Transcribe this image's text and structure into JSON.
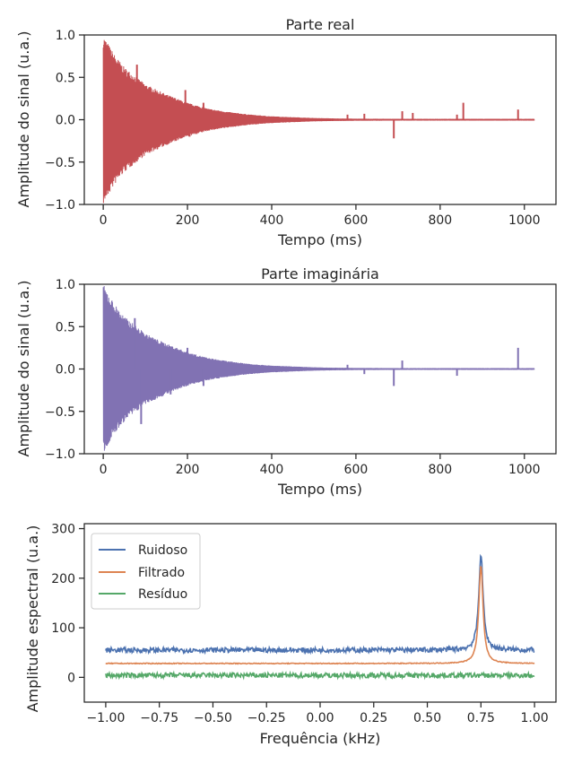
{
  "chart_data": [
    {
      "type": "line",
      "title": "Parte real",
      "xlabel": "Tempo (ms)",
      "ylabel": "Amplitude do sinal (u.a.)",
      "xlim": [
        -45,
        1075
      ],
      "ylim": [
        -1.0,
        1.0
      ],
      "xticks": [
        0,
        200,
        400,
        600,
        800,
        1000
      ],
      "yticks": [
        -1.0,
        -0.5,
        0.0,
        0.5,
        1.0
      ],
      "xtick_labels": [
        "0",
        "200",
        "400",
        "600",
        "800",
        "1000"
      ],
      "ytick_labels": [
        "−1.0",
        "−0.5",
        "0.0",
        "0.5",
        "1.0"
      ],
      "color": "#c44e52",
      "series": [
        {
          "envelope": {
            "x": [
              0,
              25,
              50,
              100,
              150,
              200,
              250,
              300,
              350,
              400,
              450,
              500,
              550,
              600,
              700,
              800,
              900,
              1000,
              1024
            ],
            "amp": [
              1.0,
              0.78,
              0.62,
              0.42,
              0.3,
              0.2,
              0.13,
              0.09,
              0.06,
              0.04,
              0.03,
              0.02,
              0.015,
              0.012,
              0.01,
              0.01,
              0.01,
              0.01,
              0.01
            ]
          },
          "spikes": [
            {
              "x": 80,
              "y": 0.65
            },
            {
              "x": 90,
              "y": -0.35
            },
            {
              "x": 165,
              "y": -0.2
            },
            {
              "x": 195,
              "y": 0.35
            },
            {
              "x": 205,
              "y": -0.2
            },
            {
              "x": 238,
              "y": 0.2
            },
            {
              "x": 242,
              "y": -0.12
            },
            {
              "x": 580,
              "y": 0.06
            },
            {
              "x": 620,
              "y": 0.07
            },
            {
              "x": 690,
              "y": -0.22
            },
            {
              "x": 710,
              "y": 0.1
            },
            {
              "x": 735,
              "y": 0.08
            },
            {
              "x": 840,
              "y": 0.06
            },
            {
              "x": 855,
              "y": 0.2
            },
            {
              "x": 985,
              "y": 0.12
            }
          ]
        }
      ]
    },
    {
      "type": "line",
      "title": "Parte imaginária",
      "xlabel": "Tempo (ms)",
      "ylabel": "Amplitude do sinal (u.a.)",
      "xlim": [
        -45,
        1075
      ],
      "ylim": [
        -1.0,
        1.0
      ],
      "xticks": [
        0,
        200,
        400,
        600,
        800,
        1000
      ],
      "yticks": [
        -1.0,
        -0.5,
        0.0,
        0.5,
        1.0
      ],
      "xtick_labels": [
        "0",
        "200",
        "400",
        "600",
        "800",
        "1000"
      ],
      "ytick_labels": [
        "−1.0",
        "−0.5",
        "0.0",
        "0.5",
        "1.0"
      ],
      "color": "#8172b3",
      "series": [
        {
          "envelope": {
            "x": [
              0,
              25,
              50,
              100,
              150,
              200,
              250,
              300,
              350,
              400,
              450,
              500,
              550,
              600,
              700,
              800,
              900,
              1000,
              1024
            ],
            "amp": [
              1.0,
              0.78,
              0.62,
              0.42,
              0.3,
              0.2,
              0.13,
              0.09,
              0.06,
              0.04,
              0.03,
              0.02,
              0.015,
              0.012,
              0.01,
              0.01,
              0.01,
              0.01,
              0.01
            ]
          },
          "spikes": [
            {
              "x": 75,
              "y": 0.6
            },
            {
              "x": 90,
              "y": -0.65
            },
            {
              "x": 160,
              "y": -0.3
            },
            {
              "x": 200,
              "y": 0.25
            },
            {
              "x": 238,
              "y": -0.2
            },
            {
              "x": 580,
              "y": 0.05
            },
            {
              "x": 620,
              "y": -0.06
            },
            {
              "x": 690,
              "y": -0.2
            },
            {
              "x": 710,
              "y": 0.1
            },
            {
              "x": 840,
              "y": -0.08
            },
            {
              "x": 985,
              "y": 0.25
            }
          ]
        }
      ]
    },
    {
      "type": "line",
      "title": "",
      "xlabel": "Frequência (kHz)",
      "ylabel": "Amplitude espectral (u.a.)",
      "xlim": [
        -1.1,
        1.1
      ],
      "ylim": [
        -50,
        310
      ],
      "xticks": [
        -1.0,
        -0.75,
        -0.5,
        -0.25,
        0.0,
        0.25,
        0.5,
        0.75,
        1.0
      ],
      "yticks": [
        0,
        100,
        200,
        300
      ],
      "xtick_labels": [
        "−1.00",
        "−0.75",
        "−0.50",
        "−0.25",
        "0.00",
        "0.25",
        "0.50",
        "0.75",
        "1.00"
      ],
      "ytick_labels": [
        "0",
        "100",
        "200",
        "300"
      ],
      "legend_position": "top-left",
      "series": [
        {
          "name": "Ruidoso",
          "color": "#4c72b0",
          "baseline": 55,
          "noise": 5,
          "peak_x": 0.75,
          "peak_y": 248
        },
        {
          "name": "Filtrado",
          "color": "#dd8452",
          "baseline": 28,
          "noise": 0.8,
          "peak_x": 0.75,
          "peak_y": 225
        },
        {
          "name": "Resíduo",
          "color": "#55a868",
          "baseline": 4,
          "noise": 5,
          "peak_x": 0.75,
          "peak_y": 4
        }
      ]
    }
  ]
}
